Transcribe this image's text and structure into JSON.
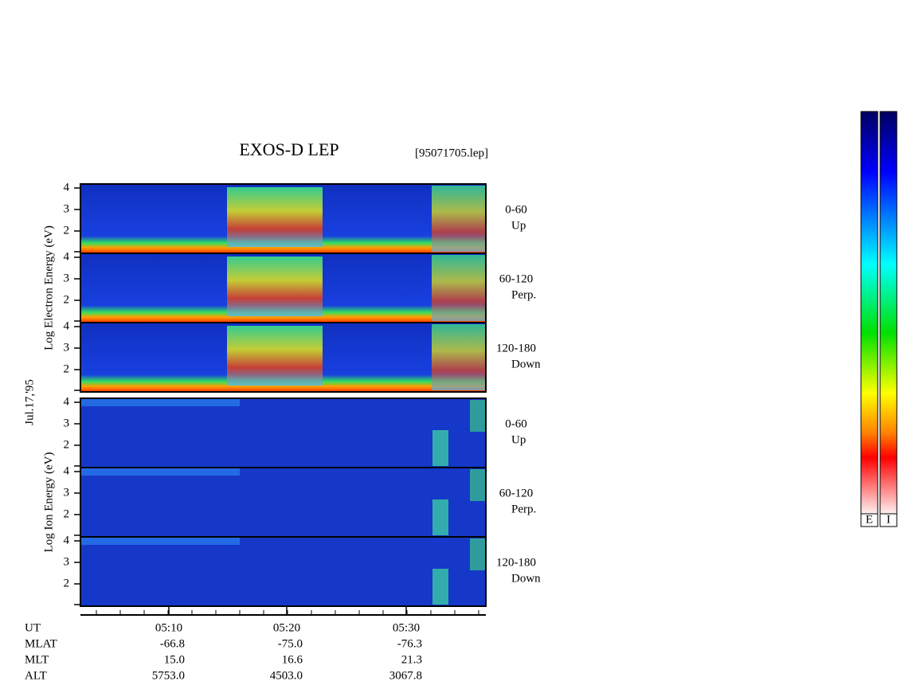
{
  "title": "EXOS-D LEP",
  "file": "[95071705.lep]",
  "date": "Jul.17,'95",
  "yticks": [
    "4",
    "3",
    "2"
  ],
  "groups": [
    {
      "ylabel": "Log  Electron  Energy (eV)",
      "panels": [
        {
          "angle": "0-60",
          "dir": "Up"
        },
        {
          "angle": "60-120",
          "dir": "Perp."
        },
        {
          "angle": "120-180",
          "dir": "Down"
        }
      ]
    },
    {
      "ylabel": "Log  Ion  Energy (eV)",
      "panels": [
        {
          "angle": "0-60",
          "dir": "Up"
        },
        {
          "angle": "60-120",
          "dir": "Perp."
        },
        {
          "angle": "120-180",
          "dir": "Down"
        }
      ]
    }
  ],
  "footer": {
    "times": [
      "05:10",
      "05:20",
      "05:30"
    ],
    "rows": [
      {
        "label": "UT",
        "values": []
      },
      {
        "label": "MLAT",
        "values": [
          "-66.8",
          "-75.0",
          "-76.3"
        ]
      },
      {
        "label": "MLT",
        "values": [
          "15.0",
          "16.6",
          "21.3"
        ]
      },
      {
        "label": "ALT",
        "values": [
          "5753.0",
          "4503.0",
          "3067.8"
        ]
      }
    ]
  },
  "colorbars": [
    "E",
    "I"
  ]
}
